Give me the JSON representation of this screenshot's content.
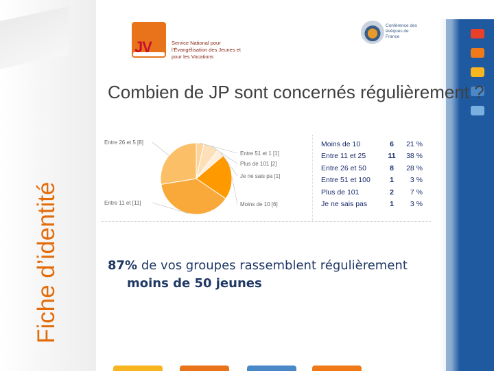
{
  "side_title": "Fiche d’identité",
  "slide_title": "Combien de JP sont concernés régulièrement ?",
  "logos": {
    "left": {
      "mark": "JV",
      "caption": "Service National pour l’Évangélisation des Jeunes et pour les Vocations"
    },
    "right": {
      "caption": "Conférence des évêques de France"
    }
  },
  "chart_data": {
    "type": "pie",
    "slices": [
      {
        "label": "Moins de 10",
        "pie_label": "Moins de 10 [6]",
        "count": 6,
        "percent": "21 %",
        "color": "#ff9900"
      },
      {
        "label": "Entre 11 et 25",
        "pie_label": "Entre 11 et [11]",
        "count": 11,
        "percent": "38 %",
        "color": "#f8a93a"
      },
      {
        "label": "Entre 26 et 50",
        "pie_label": "Entre 26 et 5 [8]",
        "count": 8,
        "percent": "28 %",
        "color": "#fbbf68"
      },
      {
        "label": "Entre 51 et 100",
        "pie_label": "Entre 51 et 1 [1]",
        "count": 1,
        "percent": "3 %",
        "color": "#fcd49b"
      },
      {
        "label": "Plus de 101",
        "pie_label": "Plus de 101 [2]",
        "count": 2,
        "percent": "7 %",
        "color": "#fde0b8"
      },
      {
        "label": "Je ne sais pas",
        "pie_label": "Je ne sais pa [1]",
        "count": 1,
        "percent": "3 %",
        "color": "#feeedb"
      }
    ]
  },
  "bullet": {
    "percent": "87%",
    "text_a": " de vos groupes rassemblent régulièrement",
    "text_b": "moins de 50 jeunes"
  },
  "colors": {
    "accent_orange": "#e36c0a",
    "brand_blue": "#1f5aa0",
    "tiles": [
      "#e8402a",
      "#f07a1a",
      "#f7b520",
      "#4a88c8",
      "#7ab0e0"
    ],
    "bottom_bars": [
      "#f7b520",
      "#e8731a",
      "#4a88c8",
      "#f07a1a"
    ]
  }
}
